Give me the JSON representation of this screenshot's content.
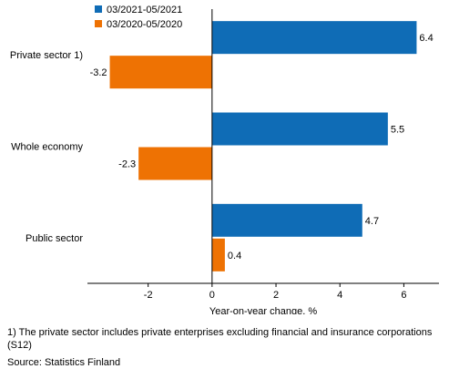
{
  "chart_data": {
    "type": "bar",
    "orientation": "horizontal",
    "categories": [
      "Private sector 1)",
      "Whole economy",
      "Public sector"
    ],
    "series": [
      {
        "name": "03/2021-05/2021",
        "values": [
          6.4,
          5.5,
          4.7
        ],
        "color": "#0f6cb6"
      },
      {
        "name": "03/2020-05/2020",
        "values": [
          -3.2,
          -2.3,
          0.4
        ],
        "color": "#ee7203"
      }
    ],
    "data_labels": [
      [
        "6.4",
        "5.5",
        "4.7"
      ],
      [
        "-3.2",
        "-2.3",
        "0.4"
      ]
    ],
    "xlabel": "Year-on-year change, %",
    "xlim": [
      -3.9,
      7.1
    ],
    "xticks": [
      -2,
      0,
      2,
      4,
      6
    ],
    "xtick_labels": [
      "-2",
      "0",
      "2",
      "4",
      "6"
    ],
    "grid": false,
    "legend_position": "top-left"
  },
  "footnote": "1) The private sector includes private enterprises excluding financial and insurance corporations (S12)",
  "source": "Source: Statistics Finland"
}
